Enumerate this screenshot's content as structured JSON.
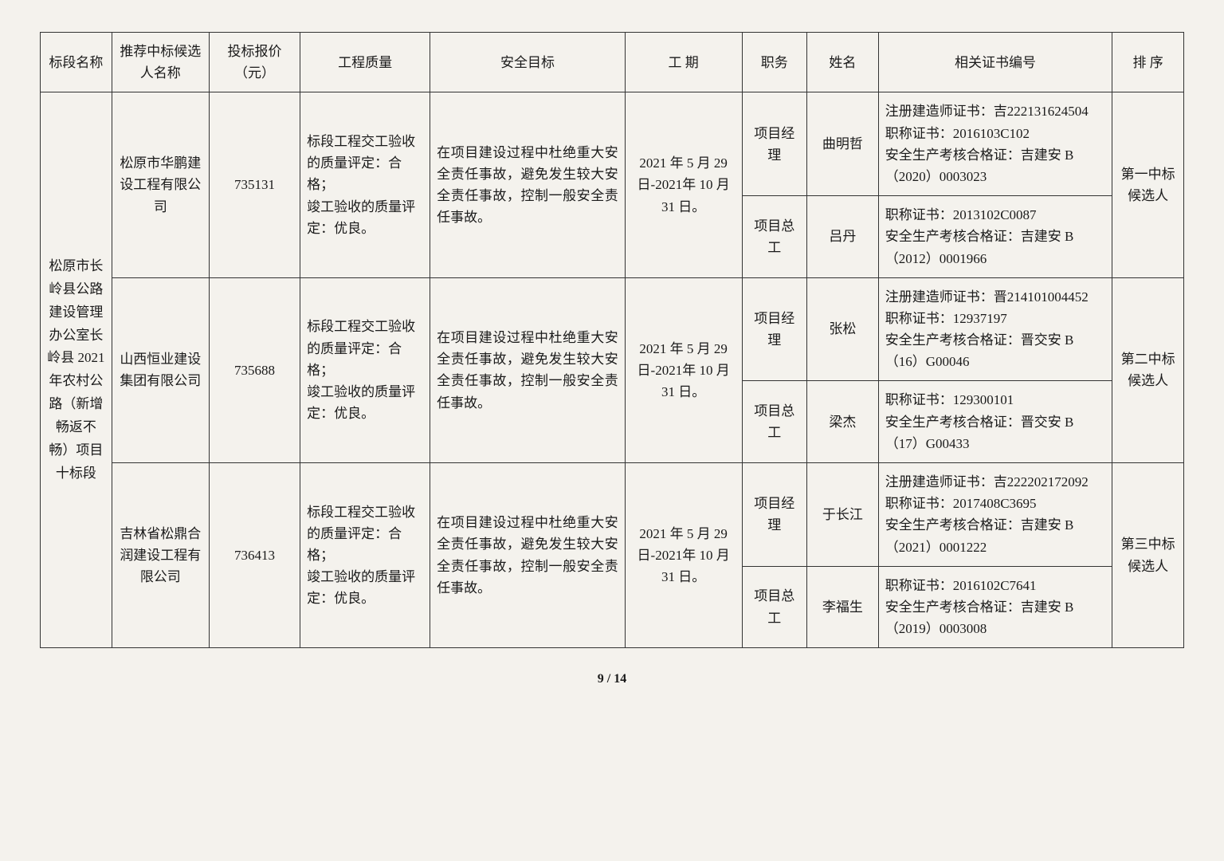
{
  "headers": {
    "section": "标段名称",
    "candidate": "推荐中标候选人名称",
    "price": "投标报价（元）",
    "quality": "工程质量",
    "safety": "安全目标",
    "duration": "工 期",
    "role": "职务",
    "name": "姓名",
    "cert": "相关证书编号",
    "rank": "排 序"
  },
  "section_name": "松原市长岭县公路建设管理办公室长岭县 2021 年农村公路（新增畅返不畅）项目十标段",
  "candidates": [
    {
      "company": "松原市华鹏建设工程有限公司",
      "price": "735131",
      "quality": "标段工程交工验收的质量评定：合格；\n竣工验收的质量评定：优良。",
      "safety": "在项目建设过程中杜绝重大安全责任事故，避免发生较大安全责任事故，控制一般安全责任事故。",
      "duration": "2021 年 5 月 29 日-2021年 10 月 31 日。",
      "rank": "第一中标候选人",
      "staff": [
        {
          "role": "项目经理",
          "name": "曲明哲",
          "cert": "注册建造师证书：吉222131624504\n职称证书：2016103C102\n安全生产考核合格证：吉建安 B（2020）0003023"
        },
        {
          "role": "项目总工",
          "name": "吕丹",
          "cert": "职称证书：2013102C0087\n安全生产考核合格证：吉建安 B（2012）0001966"
        }
      ]
    },
    {
      "company": "山西恒业建设集团有限公司",
      "price": "735688",
      "quality": "标段工程交工验收的质量评定：合格；\n竣工验收的质量评定：优良。",
      "safety": "在项目建设过程中杜绝重大安全责任事故，避免发生较大安全责任事故，控制一般安全责任事故。",
      "duration": "2021 年 5 月 29 日-2021年 10 月 31 日。",
      "rank": "第二中标候选人",
      "staff": [
        {
          "role": "项目经理",
          "name": "张松",
          "cert": "注册建造师证书：晋214101004452\n职称证书：12937197\n安全生产考核合格证：晋交安 B（16）G00046"
        },
        {
          "role": "项目总工",
          "name": "梁杰",
          "cert": "职称证书：129300101\n安全生产考核合格证：晋交安 B（17）G00433"
        }
      ]
    },
    {
      "company": "吉林省松鼎合润建设工程有限公司",
      "price": "736413",
      "quality": "标段工程交工验收的质量评定：合格；\n竣工验收的质量评定：优良。",
      "safety": "在项目建设过程中杜绝重大安全责任事故，避免发生较大安全责任事故，控制一般安全责任事故。",
      "duration": "2021 年 5 月 29 日-2021年 10 月 31 日。",
      "rank": "第三中标候选人",
      "staff": [
        {
          "role": "项目经理",
          "name": "于长江",
          "cert": "注册建造师证书：吉222202172092\n职称证书：2017408C3695\n安全生产考核合格证：吉建安 B（2021）0001222"
        },
        {
          "role": "项目总工",
          "name": "李福生",
          "cert": "职称证书：2016102C7641\n安全生产考核合格证：吉建安 B（2019）0003008"
        }
      ]
    }
  ],
  "page_current": "9",
  "page_total": "14"
}
